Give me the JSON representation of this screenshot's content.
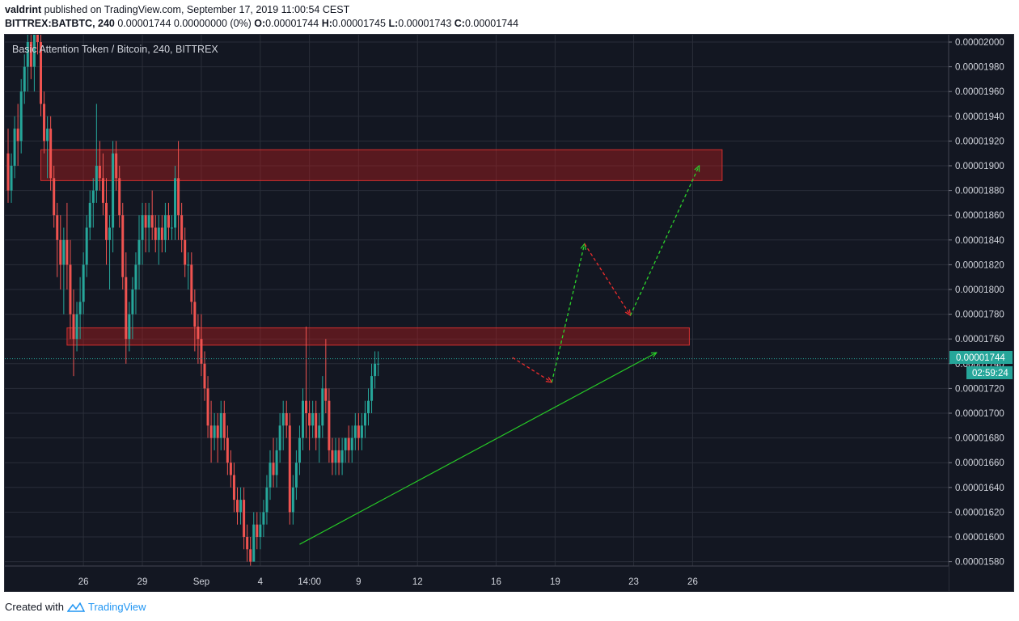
{
  "header": {
    "author": "valdrint",
    "published_text": "published on TradingView.com, September 17, 2019 11:00:54 CEST",
    "symbol": "BITTREX:BATBTC, 240",
    "quote": "0.00001744 0.00000000 (0%)",
    "o_label": "O:",
    "o_value": "0.00001744",
    "h_label": "H:",
    "h_value": "0.00001745",
    "l_label": "L:",
    "l_value": "0.00001743",
    "c_label": "C:",
    "c_value": "0.00001744"
  },
  "footer": {
    "created_with": "Created with",
    "brand": "TradingView"
  },
  "colors": {
    "background": "#131722",
    "up": "#26a69a",
    "down": "#ef5350",
    "grid": "#2a2e39",
    "zone": "#b71c1c",
    "trend": "#26c826"
  },
  "chart_data": {
    "type": "candlestick",
    "title": "Basic Attention Token / Bitcoin, 240, BITTREX",
    "y_ticks": [
      "0.00002000",
      "0.00001980",
      "0.00001960",
      "0.00001940",
      "0.00001920",
      "0.00001900",
      "0.00001880",
      "0.00001860",
      "0.00001840",
      "0.00001820",
      "0.00001800",
      "0.00001780",
      "0.00001760",
      "0.00001740",
      "0.00001720",
      "0.00001700",
      "0.00001680",
      "0.00001660",
      "0.00001640",
      "0.00001620",
      "0.00001600",
      "0.00001580"
    ],
    "x_ticks": [
      {
        "label": "26",
        "bar": 23
      },
      {
        "label": "29",
        "bar": 41
      },
      {
        "label": "Sep",
        "bar": 59
      },
      {
        "label": "4",
        "bar": 77
      },
      {
        "label": "14:00",
        "bar": 92
      },
      {
        "label": "9",
        "bar": 107
      },
      {
        "label": "12",
        "bar": 125
      },
      {
        "label": "16",
        "bar": 149
      },
      {
        "label": "19",
        "bar": 167
      },
      {
        "label": "23",
        "bar": 191
      },
      {
        "label": "26",
        "bar": 209
      }
    ],
    "current_price": "0.00001744",
    "countdown": "02:59:24",
    "ylim": [
      1.57e-05,
      2.01e-05
    ],
    "resistance_zones": [
      {
        "from_bar": 10,
        "to_bar": 218,
        "low": 1.888e-05,
        "high": 1.913e-05
      },
      {
        "from_bar": 18,
        "to_bar": 208,
        "low": 1.755e-05,
        "high": 1.769e-05
      }
    ],
    "trendline": {
      "from": [
        89,
        1.594e-05
      ],
      "to": [
        198,
        1.749e-05
      ]
    },
    "projection": [
      [
        154,
        1.745e-05
      ],
      [
        166,
        1.725e-05
      ],
      [
        176,
        1.837e-05
      ],
      [
        190,
        1.779e-05
      ],
      [
        211,
        1.9e-05
      ]
    ],
    "candles": [
      [
        1.91e-05,
        1.93e-05,
        1.87e-05,
        1.88e-05
      ],
      [
        1.88e-05,
        1.91e-05,
        1.87e-05,
        1.9e-05
      ],
      [
        1.9e-05,
        1.94e-05,
        1.89e-05,
        1.93e-05
      ],
      [
        1.93e-05,
        1.95e-05,
        1.9e-05,
        1.92e-05
      ],
      [
        1.92e-05,
        1.97e-05,
        1.91e-05,
        1.96e-05
      ],
      [
        1.96e-05,
        1.99e-05,
        1.95e-05,
        1.98e-05
      ],
      [
        1.98e-05,
        2.01e-05,
        1.96e-05,
        2e-05
      ],
      [
        2e-05,
        2.01e-05,
        1.97e-05,
        1.98e-05
      ],
      [
        1.98e-05,
        2.01e-05,
        1.96e-05,
        2.01e-05
      ],
      [
        2.01e-05,
        2.01e-05,
        1.99e-05,
        2e-05
      ],
      [
        2e-05,
        2.01e-05,
        1.94e-05,
        1.95e-05
      ],
      [
        1.95e-05,
        1.96e-05,
        1.91e-05,
        1.92e-05
      ],
      [
        1.92e-05,
        1.94e-05,
        1.89e-05,
        1.93e-05
      ],
      [
        1.93e-05,
        1.94e-05,
        1.88e-05,
        1.89e-05
      ],
      [
        1.89e-05,
        1.9e-05,
        1.85e-05,
        1.86e-05
      ],
      [
        1.86e-05,
        1.87e-05,
        1.81e-05,
        1.84e-05
      ],
      [
        1.84e-05,
        1.86e-05,
        1.8e-05,
        1.82e-05
      ],
      [
        1.82e-05,
        1.85e-05,
        1.78e-05,
        1.84e-05
      ],
      [
        1.84e-05,
        1.87e-05,
        1.8e-05,
        1.82e-05
      ],
      [
        1.82e-05,
        1.84e-05,
        1.76e-05,
        1.78e-05
      ],
      [
        1.78e-05,
        1.8e-05,
        1.73e-05,
        1.76e-05
      ],
      [
        1.76e-05,
        1.79e-05,
        1.75e-05,
        1.78e-05
      ],
      [
        1.78e-05,
        1.81e-05,
        1.76e-05,
        1.79e-05
      ],
      [
        1.79e-05,
        1.83e-05,
        1.78e-05,
        1.82e-05
      ],
      [
        1.82e-05,
        1.86e-05,
        1.81e-05,
        1.85e-05
      ],
      [
        1.85e-05,
        1.88e-05,
        1.84e-05,
        1.87e-05
      ],
      [
        1.87e-05,
        1.89e-05,
        1.85e-05,
        1.88e-05
      ],
      [
        1.88e-05,
        1.95e-05,
        1.87e-05,
        1.9e-05
      ],
      [
        1.9e-05,
        1.92e-05,
        1.88e-05,
        1.89e-05
      ],
      [
        1.89e-05,
        1.91e-05,
        1.86e-05,
        1.87e-05
      ],
      [
        1.87e-05,
        1.89e-05,
        1.82e-05,
        1.84e-05
      ],
      [
        1.84e-05,
        1.86e-05,
        1.8e-05,
        1.85e-05
      ],
      [
        1.85e-05,
        1.92e-05,
        1.83e-05,
        1.91e-05
      ],
      [
        1.91e-05,
        1.92e-05,
        1.88e-05,
        1.89e-05
      ],
      [
        1.89e-05,
        1.9e-05,
        1.85e-05,
        1.86e-05
      ],
      [
        1.86e-05,
        1.87e-05,
        1.8e-05,
        1.81e-05
      ],
      [
        1.81e-05,
        1.83e-05,
        1.74e-05,
        1.76e-05
      ],
      [
        1.76e-05,
        1.79e-05,
        1.75e-05,
        1.78e-05
      ],
      [
        1.78e-05,
        1.81e-05,
        1.76e-05,
        1.8e-05
      ],
      [
        1.8e-05,
        1.83e-05,
        1.78e-05,
        1.82e-05
      ],
      [
        1.82e-05,
        1.86e-05,
        1.8e-05,
        1.84e-05
      ],
      [
        1.84e-05,
        1.87e-05,
        1.82e-05,
        1.86e-05
      ],
      [
        1.86e-05,
        1.87e-05,
        1.83e-05,
        1.85e-05
      ],
      [
        1.85e-05,
        1.87e-05,
        1.83e-05,
        1.86e-05
      ],
      [
        1.86e-05,
        1.88e-05,
        1.84e-05,
        1.85e-05
      ],
      [
        1.85e-05,
        1.86e-05,
        1.83e-05,
        1.84e-05
      ],
      [
        1.84e-05,
        1.86e-05,
        1.82e-05,
        1.85e-05
      ],
      [
        1.85e-05,
        1.86e-05,
        1.83e-05,
        1.84e-05
      ],
      [
        1.84e-05,
        1.87e-05,
        1.83e-05,
        1.86e-05
      ],
      [
        1.86e-05,
        1.87e-05,
        1.84e-05,
        1.85e-05
      ],
      [
        1.85e-05,
        1.86e-05,
        1.84e-05,
        1.85e-05
      ],
      [
        1.85e-05,
        1.9e-05,
        1.84e-05,
        1.89e-05
      ],
      [
        1.89e-05,
        1.92e-05,
        1.84e-05,
        1.86e-05
      ],
      [
        1.86e-05,
        1.87e-05,
        1.83e-05,
        1.84e-05
      ],
      [
        1.84e-05,
        1.85e-05,
        1.81e-05,
        1.82e-05
      ],
      [
        1.82e-05,
        1.83e-05,
        1.8e-05,
        1.82e-05
      ],
      [
        1.82e-05,
        1.83e-05,
        1.78e-05,
        1.79e-05
      ],
      [
        1.79e-05,
        1.8e-05,
        1.75e-05,
        1.77e-05
      ],
      [
        1.77e-05,
        1.78e-05,
        1.74e-05,
        1.76e-05
      ],
      [
        1.76e-05,
        1.78e-05,
        1.73e-05,
        1.74e-05
      ],
      [
        1.74e-05,
        1.75e-05,
        1.71e-05,
        1.72e-05
      ],
      [
        1.72e-05,
        1.73e-05,
        1.68e-05,
        1.69e-05
      ],
      [
        1.69e-05,
        1.71e-05,
        1.66e-05,
        1.68e-05
      ],
      [
        1.68e-05,
        1.7e-05,
        1.67e-05,
        1.69e-05
      ],
      [
        1.69e-05,
        1.7e-05,
        1.66e-05,
        1.68e-05
      ],
      [
        1.68e-05,
        1.71e-05,
        1.67e-05,
        1.7e-05
      ],
      [
        1.7e-05,
        1.71e-05,
        1.67e-05,
        1.68e-05
      ],
      [
        1.68e-05,
        1.69e-05,
        1.65e-05,
        1.66e-05
      ],
      [
        1.66e-05,
        1.67e-05,
        1.64e-05,
        1.65e-05
      ],
      [
        1.65e-05,
        1.66e-05,
        1.62e-05,
        1.63e-05
      ],
      [
        1.63e-05,
        1.64e-05,
        1.61e-05,
        1.62e-05
      ],
      [
        1.62e-05,
        1.64e-05,
        1.61e-05,
        1.63e-05
      ],
      [
        1.63e-05,
        1.64e-05,
        1.59e-05,
        1.6e-05
      ],
      [
        1.6e-05,
        1.61e-05,
        1.58e-05,
        1.59e-05
      ],
      [
        1.59e-05,
        1.6e-05,
        1.57e-05,
        1.58e-05
      ],
      [
        1.58e-05,
        1.62e-05,
        1.58e-05,
        1.61e-05
      ],
      [
        1.61e-05,
        1.62e-05,
        1.59e-05,
        1.6e-05
      ],
      [
        1.6e-05,
        1.62e-05,
        1.59e-05,
        1.61e-05
      ],
      [
        1.61e-05,
        1.63e-05,
        1.6e-05,
        1.62e-05
      ],
      [
        1.62e-05,
        1.65e-05,
        1.61e-05,
        1.64e-05
      ],
      [
        1.64e-05,
        1.67e-05,
        1.63e-05,
        1.66e-05
      ],
      [
        1.66e-05,
        1.68e-05,
        1.64e-05,
        1.65e-05
      ],
      [
        1.65e-05,
        1.68e-05,
        1.64e-05,
        1.67e-05
      ],
      [
        1.67e-05,
        1.7e-05,
        1.66e-05,
        1.69e-05
      ],
      [
        1.69e-05,
        1.71e-05,
        1.67e-05,
        1.7e-05
      ],
      [
        1.7e-05,
        1.71e-05,
        1.68e-05,
        1.69e-05
      ],
      [
        1.69e-05,
        1.7e-05,
        1.61e-05,
        1.62e-05
      ],
      [
        1.62e-05,
        1.65e-05,
        1.61e-05,
        1.64e-05
      ],
      [
        1.64e-05,
        1.67e-05,
        1.63e-05,
        1.66e-05
      ],
      [
        1.66e-05,
        1.69e-05,
        1.65e-05,
        1.68e-05
      ],
      [
        1.68e-05,
        1.72e-05,
        1.67e-05,
        1.71e-05
      ],
      [
        1.71e-05,
        1.77e-05,
        1.68e-05,
        1.7e-05
      ],
      [
        1.7e-05,
        1.71e-05,
        1.67e-05,
        1.69e-05
      ],
      [
        1.69e-05,
        1.71e-05,
        1.68e-05,
        1.7e-05
      ],
      [
        1.7e-05,
        1.71e-05,
        1.67e-05,
        1.68e-05
      ],
      [
        1.68e-05,
        1.7e-05,
        1.66e-05,
        1.69e-05
      ],
      [
        1.69e-05,
        1.73e-05,
        1.68e-05,
        1.72e-05
      ],
      [
        1.72e-05,
        1.76e-05,
        1.7e-05,
        1.71e-05
      ],
      [
        1.71e-05,
        1.72e-05,
        1.66e-05,
        1.67e-05
      ],
      [
        1.67e-05,
        1.68e-05,
        1.65e-05,
        1.66e-05
      ],
      [
        1.66e-05,
        1.68e-05,
        1.65e-05,
        1.67e-05
      ],
      [
        1.67e-05,
        1.68e-05,
        1.65e-05,
        1.66e-05
      ],
      [
        1.66e-05,
        1.68e-05,
        1.65e-05,
        1.67e-05
      ],
      [
        1.67e-05,
        1.68e-05,
        1.66e-05,
        1.68e-05
      ],
      [
        1.68e-05,
        1.69e-05,
        1.66e-05,
        1.67e-05
      ],
      [
        1.67e-05,
        1.69e-05,
        1.66e-05,
        1.68e-05
      ],
      [
        1.68e-05,
        1.7e-05,
        1.67e-05,
        1.69e-05
      ],
      [
        1.69e-05,
        1.7e-05,
        1.67e-05,
        1.68e-05
      ],
      [
        1.68e-05,
        1.7e-05,
        1.67e-05,
        1.69e-05
      ],
      [
        1.69e-05,
        1.71e-05,
        1.68e-05,
        1.7e-05
      ],
      [
        1.7e-05,
        1.72e-05,
        1.69e-05,
        1.71e-05
      ],
      [
        1.71e-05,
        1.74e-05,
        1.7e-05,
        1.73e-05
      ],
      [
        1.73e-05,
        1.75e-05,
        1.72e-05,
        1.74e-05
      ],
      [
        1.74e-05,
        1.75e-05,
        1.73e-05,
        1.74e-05
      ]
    ]
  }
}
